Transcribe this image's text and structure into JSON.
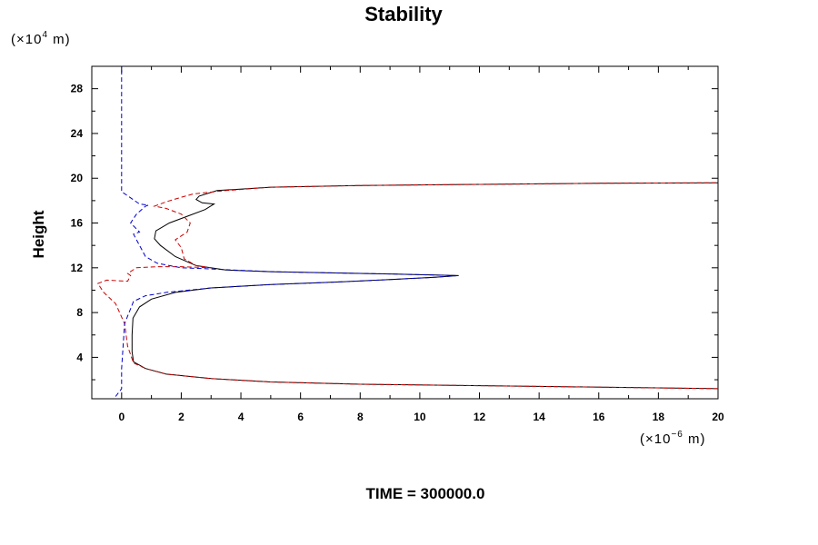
{
  "chart_data": {
    "type": "line",
    "title": "Stability",
    "xlabel": "",
    "ylabel": "Height",
    "x_unit": {
      "prefix": "(×10",
      "exp": "−6",
      "suffix": " m)"
    },
    "y_unit": {
      "prefix": "(×10",
      "exp": "4",
      "suffix": " m)"
    },
    "footer": "TIME = 300000.0",
    "xlim": [
      -1,
      20
    ],
    "ylim": [
      0.3,
      30
    ],
    "x_ticks": [
      0,
      2,
      4,
      6,
      8,
      10,
      12,
      14,
      16,
      18,
      20
    ],
    "y_ticks": [
      4,
      8,
      12,
      16,
      20,
      24,
      28
    ],
    "grid": false,
    "legend": "none",
    "series": [
      {
        "color": "#000000",
        "dash": "solid",
        "points": [
          [
            20,
            1.2
          ],
          [
            14,
            1.4
          ],
          [
            8,
            1.6
          ],
          [
            5,
            1.8
          ],
          [
            3,
            2.1
          ],
          [
            1.5,
            2.5
          ],
          [
            0.8,
            3.0
          ],
          [
            0.4,
            3.6
          ],
          [
            0.35,
            4.5
          ],
          [
            0.35,
            6
          ],
          [
            0.38,
            7.5
          ],
          [
            0.6,
            8.5
          ],
          [
            1.0,
            9.2
          ],
          [
            1.8,
            9.8
          ],
          [
            3,
            10.2
          ],
          [
            5,
            10.5
          ],
          [
            7,
            10.7
          ],
          [
            9,
            10.95
          ],
          [
            10.5,
            11.15
          ],
          [
            11.3,
            11.3
          ],
          [
            10.5,
            11.35
          ],
          [
            9,
            11.45
          ],
          [
            7,
            11.55
          ],
          [
            5,
            11.65
          ],
          [
            3.5,
            11.8
          ],
          [
            2.5,
            12.2
          ],
          [
            1.8,
            13
          ],
          [
            1.3,
            14
          ],
          [
            1.1,
            14.6
          ],
          [
            1.15,
            15.3
          ],
          [
            1.6,
            16
          ],
          [
            2.3,
            16.7
          ],
          [
            2.8,
            17.2
          ],
          [
            3.1,
            17.7
          ],
          [
            2.7,
            17.8
          ],
          [
            2.5,
            18.1
          ],
          [
            2.6,
            18.4
          ],
          [
            3.2,
            18.9
          ],
          [
            5,
            19.2
          ],
          [
            8,
            19.35
          ],
          [
            12,
            19.45
          ],
          [
            16,
            19.55
          ],
          [
            20,
            19.6
          ]
        ]
      },
      {
        "color": "#cc0000",
        "dash": "dashed",
        "points": [
          [
            20,
            1.2
          ],
          [
            14,
            1.4
          ],
          [
            8,
            1.6
          ],
          [
            5,
            1.8
          ],
          [
            3,
            2.1
          ],
          [
            1.5,
            2.5
          ],
          [
            0.8,
            3.0
          ],
          [
            0.4,
            3.5
          ],
          [
            0.2,
            5
          ],
          [
            0.1,
            7
          ],
          [
            -0.2,
            8.8
          ],
          [
            -0.6,
            9.8
          ],
          [
            -0.8,
            10.6
          ],
          [
            -0.5,
            10.9
          ],
          [
            0.2,
            10.8
          ],
          [
            0.3,
            11.3
          ],
          [
            0.2,
            11.5
          ],
          [
            0.5,
            12
          ],
          [
            1.2,
            12.1
          ],
          [
            2,
            12.1
          ],
          [
            3,
            12
          ],
          [
            2.5,
            12.2
          ],
          [
            2.1,
            12.8
          ],
          [
            2.0,
            13.8
          ],
          [
            1.8,
            14.5
          ],
          [
            2.2,
            15.2
          ],
          [
            2.3,
            16
          ],
          [
            2,
            16.8
          ],
          [
            1.5,
            17.3
          ],
          [
            1.1,
            17.5
          ],
          [
            1.5,
            17.9
          ],
          [
            2,
            18.3
          ],
          [
            2.4,
            18.6
          ],
          [
            3.5,
            18.9
          ],
          [
            5,
            19.2
          ],
          [
            8,
            19.35
          ],
          [
            12,
            19.45
          ],
          [
            16,
            19.55
          ],
          [
            20,
            19.6
          ]
        ]
      },
      {
        "color": "#0000cc",
        "dash": "dashed",
        "points": [
          [
            -0.2,
            0.5
          ],
          [
            0,
            1.2
          ],
          [
            0,
            3
          ],
          [
            0.1,
            7
          ],
          [
            0.4,
            9
          ],
          [
            0.8,
            9.5
          ],
          [
            1.5,
            9.8
          ],
          [
            3,
            10.2
          ],
          [
            5,
            10.5
          ],
          [
            7,
            10.7
          ],
          [
            9,
            10.95
          ],
          [
            10.5,
            11.15
          ],
          [
            11.3,
            11.3
          ],
          [
            10.5,
            11.35
          ],
          [
            9,
            11.45
          ],
          [
            7,
            11.55
          ],
          [
            5,
            11.65
          ],
          [
            3,
            11.9
          ],
          [
            2,
            12
          ],
          [
            1.2,
            12.4
          ],
          [
            0.8,
            13
          ],
          [
            0.5,
            14.5
          ],
          [
            0.4,
            15
          ],
          [
            0.6,
            15.2
          ],
          [
            0.3,
            16
          ],
          [
            0.5,
            16.8
          ],
          [
            0.8,
            17.5
          ],
          [
            0.9,
            17.6
          ],
          [
            0.6,
            17.7
          ],
          [
            0,
            18.8
          ],
          [
            0,
            30
          ]
        ]
      }
    ]
  }
}
